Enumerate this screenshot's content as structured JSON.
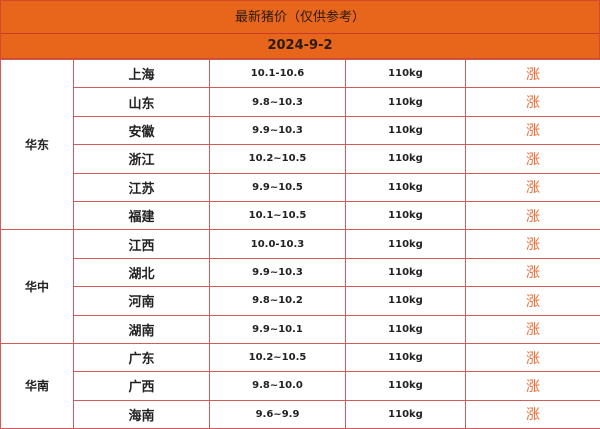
{
  "header": {
    "title": "最新猪价（仅供参考）",
    "date": "2024-9-2"
  },
  "colors": {
    "header_bg": "#e8661c",
    "border": "#d25a5a",
    "trend": "#ee6a30"
  },
  "regions": [
    {
      "name": "华东",
      "rows": [
        {
          "province": "上海",
          "price": "10.1-10.6",
          "weight": "110kg",
          "trend": "涨"
        },
        {
          "province": "山东",
          "price": "9.8~10.3",
          "weight": "110kg",
          "trend": "涨"
        },
        {
          "province": "安徽",
          "price": "9.9~10.3",
          "weight": "110kg",
          "trend": "涨"
        },
        {
          "province": "浙江",
          "price": "10.2~10.5",
          "weight": "110kg",
          "trend": "涨"
        },
        {
          "province": "江苏",
          "price": "9.9~10.5",
          "weight": "110kg",
          "trend": "涨"
        },
        {
          "province": "福建",
          "price": "10.1~10.5",
          "weight": "110kg",
          "trend": "涨"
        }
      ]
    },
    {
      "name": "华中",
      "rows": [
        {
          "province": "江西",
          "price": "10.0-10.3",
          "weight": "110kg",
          "trend": "涨"
        },
        {
          "province": "湖北",
          "price": "9.9~10.3",
          "weight": "110kg",
          "trend": "涨"
        },
        {
          "province": "河南",
          "price": "9.8~10.2",
          "weight": "110kg",
          "trend": "涨"
        },
        {
          "province": "湖南",
          "price": "9.9~10.1",
          "weight": "110kg",
          "trend": "涨"
        }
      ]
    },
    {
      "name": "华南",
      "rows": [
        {
          "province": "广东",
          "price": "10.2~10.5",
          "weight": "110kg",
          "trend": "涨"
        },
        {
          "province": "广西",
          "price": "9.8~10.0",
          "weight": "110kg",
          "trend": "涨"
        },
        {
          "province": "海南",
          "price": "9.6~9.9",
          "weight": "110kg",
          "trend": "涨"
        }
      ]
    }
  ]
}
